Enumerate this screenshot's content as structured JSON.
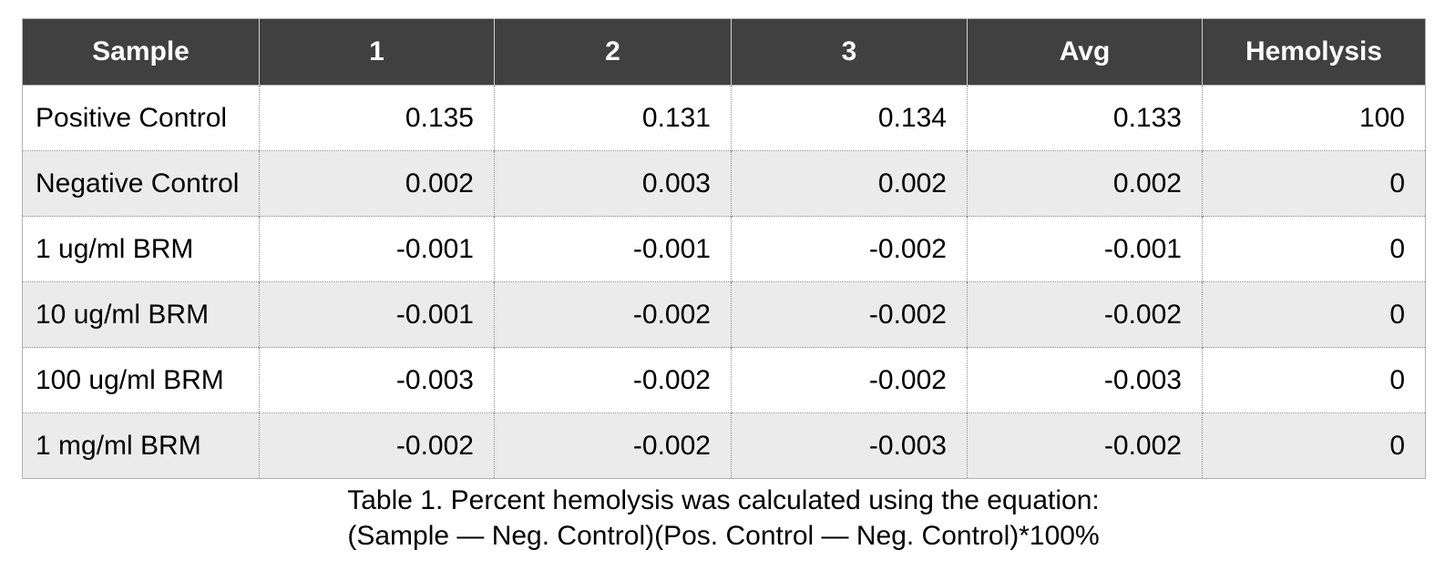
{
  "chart_data": {
    "type": "table",
    "title": "Table 1. Percent hemolysis was calculated using the equation: (Sample — Neg. Control)(Pos. Control — Neg. Control)*100%",
    "columns": [
      "Sample",
      "1",
      "2",
      "3",
      "Avg",
      "Hemolysis"
    ],
    "rows": [
      [
        "Positive Control",
        "0.135",
        "0.131",
        "0.134",
        "0.133",
        "100"
      ],
      [
        "Negative Control",
        "0.002",
        "0.003",
        "0.002",
        "0.002",
        "0"
      ],
      [
        "1 ug/ml BRM",
        "-0.001",
        "-0.001",
        "-0.002",
        "-0.001",
        "0"
      ],
      [
        "10 ug/ml BRM",
        "-0.001",
        "-0.002",
        "-0.002",
        "-0.002",
        "0"
      ],
      [
        "100 ug/ml BRM",
        "-0.003",
        "-0.002",
        "-0.002",
        "-0.003",
        "0"
      ],
      [
        "1 mg/ml BRM",
        "-0.002",
        "-0.002",
        "-0.003",
        "-0.002",
        "0"
      ]
    ]
  },
  "caption": {
    "line1": "Table 1. Percent hemolysis was calculated using the equation:",
    "line2": "(Sample — Neg. Control)(Pos. Control — Neg. Control)*100%"
  },
  "colors": {
    "header_bg": "#404040",
    "header_text": "#ffffff",
    "alt_row_bg": "#ebebeb",
    "outer_border": "#b1b1b1",
    "header_divider": "#d2d2d2",
    "dotted_border": "#8f8f8f",
    "body_text": "#000000"
  }
}
